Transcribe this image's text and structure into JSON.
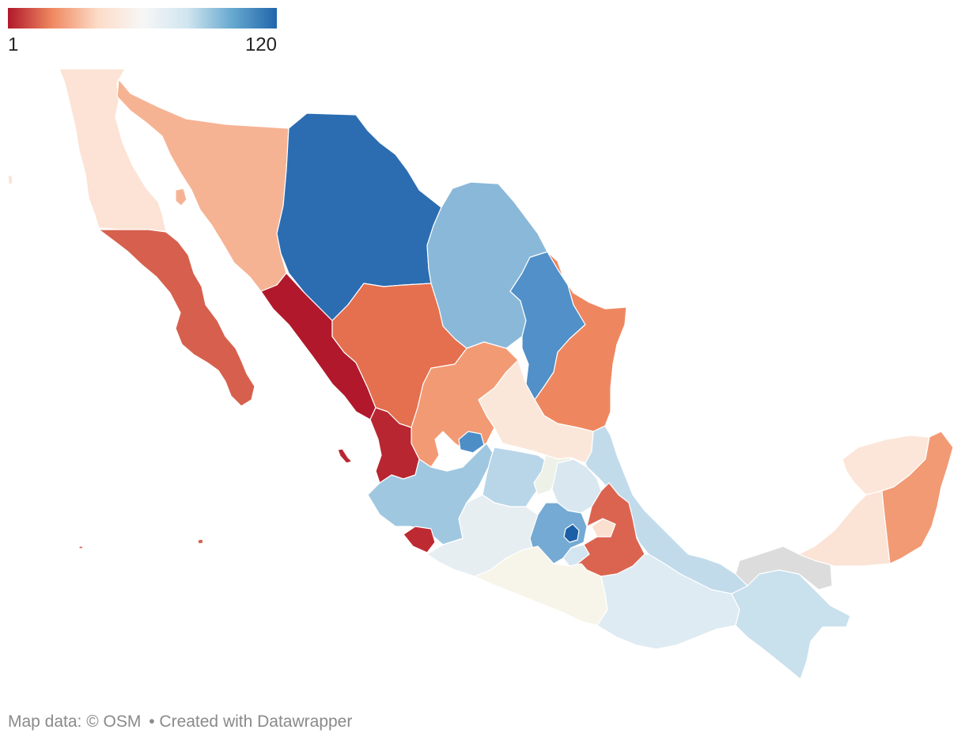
{
  "legend": {
    "min_label": "1",
    "max_label": "120",
    "gradient": [
      "#b2182b",
      "#ef8a62",
      "#fddbc7",
      "#f7f7f7",
      "#d1e5f0",
      "#67a9cf",
      "#2166ac"
    ],
    "no_data_color": "#dcdcdc"
  },
  "footer": {
    "map_data": "Map data: © OSM",
    "created_with": "• Created with Datawrapper"
  },
  "regions": [
    {
      "id": "baja-california",
      "color": "#fce3d5"
    },
    {
      "id": "baja-california-sur",
      "color": "#d6604d"
    },
    {
      "id": "sonora",
      "color": "#f6b393"
    },
    {
      "id": "chihuahua",
      "color": "#2c6db2"
    },
    {
      "id": "coahuila",
      "color": "#8ab8d9"
    },
    {
      "id": "nuevo-leon",
      "color": "#5190c8"
    },
    {
      "id": "tamaulipas",
      "color": "#ee8760"
    },
    {
      "id": "sinaloa",
      "color": "#b2182b"
    },
    {
      "id": "durango",
      "color": "#e4704f"
    },
    {
      "id": "zacatecas",
      "color": "#f29a74"
    },
    {
      "id": "san-luis-potosi",
      "color": "#fbe7d9"
    },
    {
      "id": "nayarit",
      "color": "#b82631"
    },
    {
      "id": "jalisco",
      "color": "#a0c7e0"
    },
    {
      "id": "aguascalientes",
      "color": "#4d8ec7"
    },
    {
      "id": "guanajuato",
      "color": "#b9d6e9"
    },
    {
      "id": "queretaro",
      "color": "#eef1e7"
    },
    {
      "id": "hidalgo",
      "color": "#d8e7f0"
    },
    {
      "id": "veracruz",
      "color": "#c1dbeb"
    },
    {
      "id": "michoacan",
      "color": "#e7eef2"
    },
    {
      "id": "colima",
      "color": "#bd2a32"
    },
    {
      "id": "estado-de-mexico",
      "color": "#74aad4"
    },
    {
      "id": "cdmx",
      "color": "#1d5fa6"
    },
    {
      "id": "morelos",
      "color": "#d3e5f0"
    },
    {
      "id": "tlaxcala",
      "color": "#fbdfcf"
    },
    {
      "id": "puebla",
      "color": "#db6450"
    },
    {
      "id": "guerrero",
      "color": "#f7f5e9"
    },
    {
      "id": "oaxaca",
      "color": "#deebf2"
    },
    {
      "id": "chiapas",
      "color": "#c9e0ed"
    },
    {
      "id": "tabasco",
      "color": "#dcdcdc"
    },
    {
      "id": "campeche",
      "color": "#fbe3d6"
    },
    {
      "id": "yucatan",
      "color": "#fce6d9"
    },
    {
      "id": "quintana-roo",
      "color": "#f29a74"
    }
  ]
}
